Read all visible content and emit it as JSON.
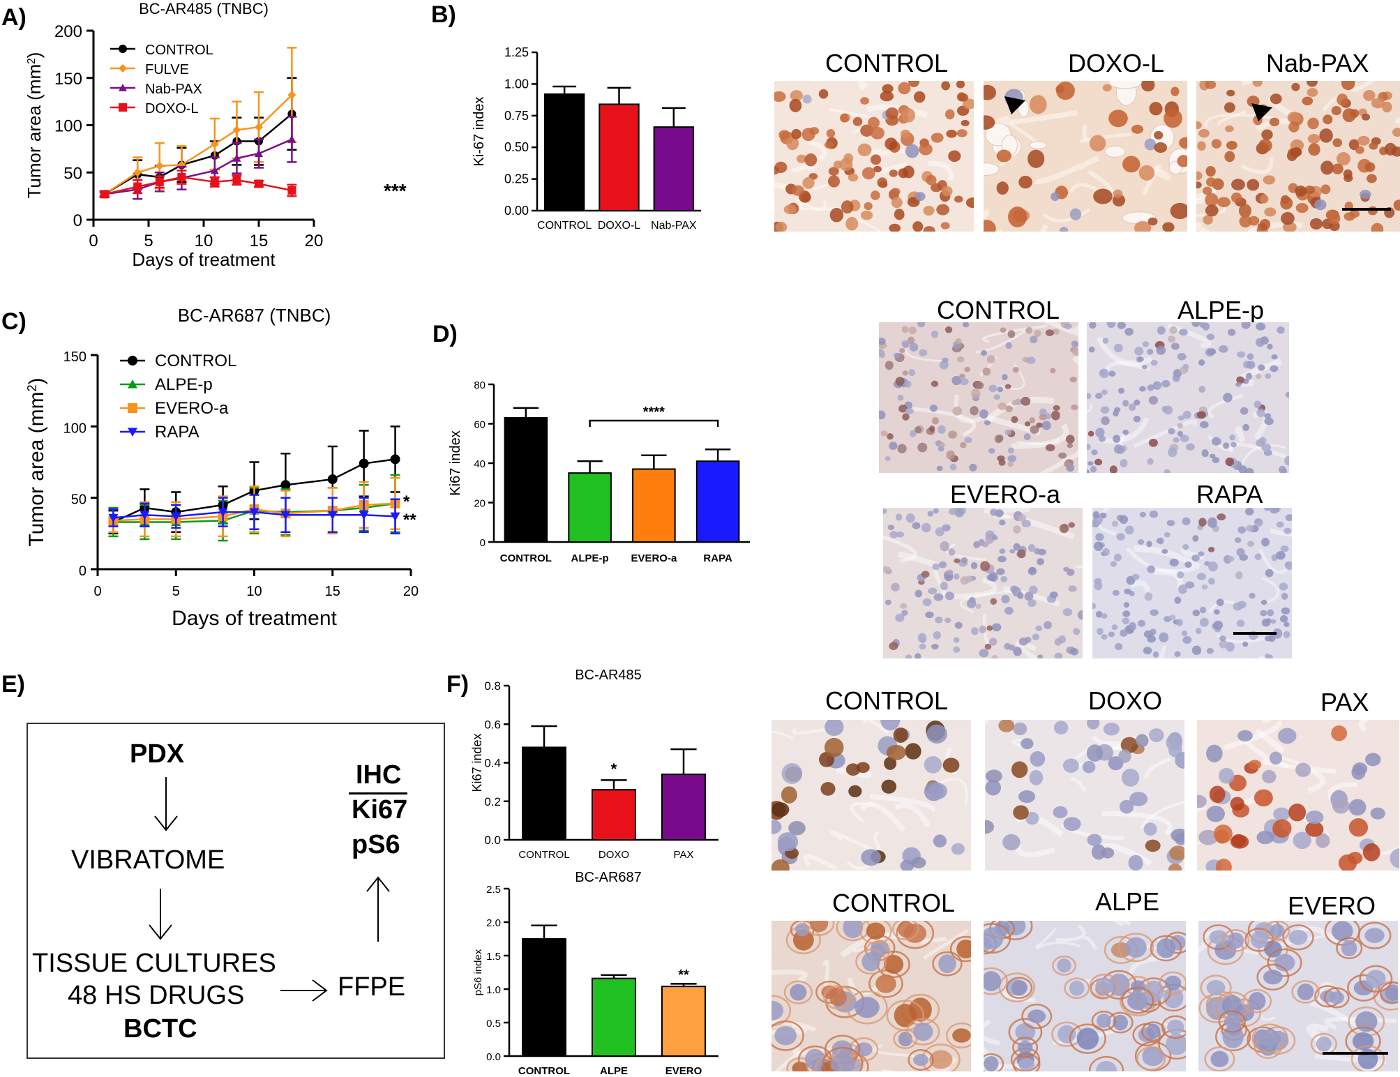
{
  "panels": {
    "A": "A)",
    "B": "B)",
    "C": "C)",
    "D": "D)",
    "E": "E)",
    "F": "F)"
  },
  "panelB_images": [
    "CONTROL",
    "DOXO-L",
    "Nab-PAX"
  ],
  "panelD_images": [
    "CONTROL",
    "ALPE-p",
    "EVERO-a",
    "RAPA"
  ],
  "panelF_images_top": [
    "CONTROL",
    "DOXO",
    "PAX"
  ],
  "panelF_images_bottom": [
    "CONTROL",
    "ALPE",
    "EVERO"
  ],
  "flow": {
    "pdx": "PDX",
    "vibratome": "VIBRATOME",
    "tissue": "TISSUE CULTURES",
    "drugs": "48 HS DRUGS",
    "bctc": "BCTC",
    "ffpe": "FFPE",
    "ihc": "IHC",
    "ki67": "Ki67",
    "ps6": "pS6"
  },
  "colors": {
    "black": "#000000",
    "orange": "#f7941d",
    "purple": "#7b0f8a",
    "red": "#e8111a",
    "green": "#0a9a1a",
    "blue": "#1a1aff",
    "bar_orange": "#ff7f0e",
    "bar_green": "#1fc01f",
    "bar_purple": "#780a8c",
    "light_orange": "#ffa040",
    "ihc_brown": "#a0522d",
    "ihc_blue": "#7a86b8"
  },
  "chart_data": [
    {
      "id": "A",
      "type": "line",
      "title": "BC-AR485 (TNBC)",
      "xlabel": "Days of treatment",
      "ylabel": "Tumor area (mm2)",
      "xlim": [
        0,
        20
      ],
      "ylim": [
        0,
        200
      ],
      "xticks": [
        "0",
        "5",
        "10",
        "15",
        "20"
      ],
      "yticks": [
        "0",
        "50",
        "100",
        "150",
        "200"
      ],
      "legend": "top-left",
      "annotation": "***",
      "series": [
        {
          "name": "CONTROL",
          "color": "#000000",
          "marker": "circle",
          "x": [
            1,
            4,
            6,
            8,
            11,
            13,
            15,
            18
          ],
          "y": [
            27,
            48,
            45,
            58,
            68,
            83,
            83,
            112
          ],
          "err": [
            3,
            15,
            12,
            18,
            15,
            25,
            25,
            38
          ]
        },
        {
          "name": "FULVE",
          "color": "#f7941d",
          "marker": "diamond",
          "x": [
            1,
            4,
            6,
            8,
            11,
            13,
            15,
            18
          ],
          "y": [
            27,
            50,
            57,
            58,
            80,
            95,
            98,
            132
          ],
          "err": [
            3,
            16,
            24,
            20,
            27,
            30,
            37,
            50
          ]
        },
        {
          "name": "Nab-PAX",
          "color": "#7b0f8a",
          "marker": "triangle",
          "x": [
            1,
            4,
            6,
            8,
            11,
            13,
            15,
            18
          ],
          "y": [
            27,
            32,
            40,
            44,
            52,
            65,
            70,
            85
          ],
          "err": [
            3,
            10,
            10,
            12,
            14,
            16,
            15,
            24
          ]
        },
        {
          "name": "DOXO-L",
          "color": "#e8111a",
          "marker": "square",
          "x": [
            1,
            4,
            6,
            8,
            11,
            13,
            15,
            18
          ],
          "y": [
            27,
            35,
            40,
            45,
            40,
            42,
            38,
            31
          ],
          "err": [
            2,
            7,
            6,
            7,
            5,
            5,
            3,
            6
          ]
        }
      ]
    },
    {
      "id": "B",
      "type": "bar",
      "title": "",
      "xlabel": "",
      "ylabel": "Ki-67 index",
      "ylim": [
        0,
        1.25
      ],
      "yticks": [
        "0.00",
        "0.25",
        "0.50",
        "0.75",
        "1.00",
        "1.25"
      ],
      "categories": [
        "CONTROL",
        "DOXO-L",
        "Nab-PAX"
      ],
      "values": [
        0.92,
        0.84,
        0.66
      ],
      "err": [
        0.06,
        0.13,
        0.15
      ],
      "colors": [
        "#000000",
        "#e8111a",
        "#780a8c"
      ]
    },
    {
      "id": "C",
      "type": "line",
      "title": "BC-AR687 (TNBC)",
      "xlabel": "Days of treatment",
      "ylabel": "Tumor area (mm2)",
      "xlim": [
        0,
        20
      ],
      "ylim": [
        0,
        150
      ],
      "xticks": [
        "0",
        "5",
        "10",
        "15",
        "20"
      ],
      "yticks": [
        "0",
        "50",
        "100",
        "150"
      ],
      "legend": "top-left",
      "annotations": [
        "*",
        "**"
      ],
      "series": [
        {
          "name": "CONTROL",
          "color": "#000000",
          "marker": "circle",
          "x": [
            1,
            3,
            5,
            8,
            10,
            12,
            15,
            17,
            19
          ],
          "y": [
            33,
            43,
            40,
            45,
            55,
            59,
            63,
            74,
            77
          ],
          "err": [
            8,
            13,
            14,
            13,
            20,
            22,
            23,
            23,
            23
          ]
        },
        {
          "name": "ALPE-p",
          "color": "#0a9a1a",
          "marker": "triangle",
          "x": [
            1,
            3,
            5,
            8,
            10,
            12,
            15,
            17,
            19
          ],
          "y": [
            33,
            33,
            33,
            34,
            41,
            40,
            41,
            43,
            46
          ],
          "err": [
            10,
            12,
            12,
            14,
            16,
            16,
            16,
            16,
            20
          ]
        },
        {
          "name": "EVERO-a",
          "color": "#f7941d",
          "marker": "square",
          "x": [
            1,
            3,
            5,
            8,
            10,
            12,
            15,
            17,
            19
          ],
          "y": [
            34,
            35,
            35,
            37,
            42,
            39,
            41,
            45,
            46
          ],
          "err": [
            8,
            12,
            12,
            14,
            16,
            16,
            16,
            16,
            18
          ]
        },
        {
          "name": "RAPA",
          "color": "#1a1aff",
          "marker": "triangle-down",
          "x": [
            1,
            3,
            5,
            8,
            10,
            12,
            15,
            17,
            19
          ],
          "y": [
            36,
            38,
            37,
            40,
            40,
            38,
            38,
            38,
            37
          ],
          "err": [
            6,
            8,
            8,
            10,
            12,
            12,
            12,
            12,
            12
          ]
        }
      ]
    },
    {
      "id": "D",
      "type": "bar",
      "title": "",
      "xlabel": "",
      "ylabel": "Ki67 index",
      "ylim": [
        0,
        80
      ],
      "yticks": [
        "0",
        "20",
        "40",
        "60",
        "80"
      ],
      "categories": [
        "CONTROL",
        "ALPE-p",
        "EVERO-a",
        "RAPA"
      ],
      "values": [
        63,
        35,
        37,
        41
      ],
      "err": [
        5,
        6,
        7,
        6
      ],
      "colors": [
        "#000000",
        "#1fc01f",
        "#ff7f0e",
        "#1a1aff"
      ],
      "annotation": "****"
    },
    {
      "id": "F-top",
      "type": "bar",
      "title": "BC-AR485",
      "xlabel": "",
      "ylabel": "Ki67 index",
      "ylim": [
        0,
        0.8
      ],
      "yticks": [
        "0.0",
        "0.2",
        "0.4",
        "0.6",
        "0.8"
      ],
      "categories": [
        "CONTROL",
        "DOXO",
        "PAX"
      ],
      "values": [
        0.48,
        0.26,
        0.34
      ],
      "err": [
        0.11,
        0.05,
        0.13
      ],
      "colors": [
        "#000000",
        "#e8111a",
        "#780a8c"
      ],
      "annotation": "*"
    },
    {
      "id": "F-bottom",
      "type": "bar",
      "title": "BC-AR687",
      "xlabel": "",
      "ylabel": "pS6 index",
      "ylim": [
        0,
        2.5
      ],
      "yticks": [
        "0.0",
        "0.5",
        "1.0",
        "1.5",
        "2.0",
        "2.5"
      ],
      "categories": [
        "CONTROL",
        "ALPE",
        "EVERO"
      ],
      "values": [
        1.75,
        1.16,
        1.04
      ],
      "err": [
        0.2,
        0.05,
        0.04
      ],
      "colors": [
        "#000000",
        "#1fc01f",
        "#ffa040"
      ],
      "annotation": "**"
    }
  ]
}
